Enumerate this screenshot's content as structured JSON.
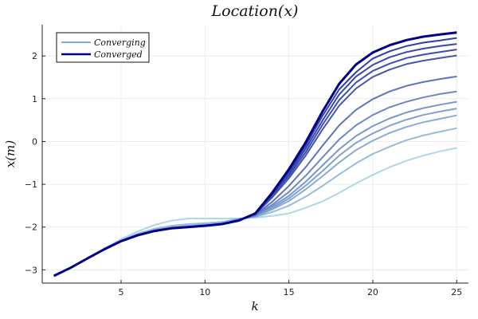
{
  "chart_data": {
    "type": "line",
    "title": "Location(x)",
    "xlabel": "k",
    "ylabel": "x(m)",
    "xlim": [
      0.3,
      25.7
    ],
    "ylim": [
      -3.31,
      2.73
    ],
    "xticks": [
      5,
      10,
      15,
      20,
      25
    ],
    "yticks": [
      -3,
      -2,
      -1,
      0,
      1,
      2
    ],
    "ytick_labels": [
      "−3",
      "−2",
      "−1",
      "0",
      "1",
      "2"
    ],
    "grid": true,
    "legend": {
      "placement": "top-left",
      "entries": [
        {
          "label": "Converging",
          "color": "#86a9de"
        },
        {
          "label": "Converged",
          "color": "#00008b"
        }
      ]
    },
    "colors": {
      "start": "#add8e6",
      "end": "#00008b",
      "converged": "#00008b"
    },
    "x": [
      1,
      2,
      3,
      4,
      5,
      6,
      7,
      8,
      9,
      10,
      11,
      12,
      13,
      14,
      15,
      16,
      17,
      18,
      19,
      20,
      21,
      22,
      23,
      24,
      25
    ],
    "series": [
      {
        "name": "Converging",
        "level": 0.0,
        "values": [
          -3.14,
          -2.95,
          -2.73,
          -2.5,
          -2.28,
          -2.1,
          -1.95,
          -1.85,
          -1.8,
          -1.8,
          -1.8,
          -1.8,
          -1.78,
          -1.74,
          -1.68,
          -1.55,
          -1.4,
          -1.2,
          -0.98,
          -0.78,
          -0.6,
          -0.45,
          -0.33,
          -0.23,
          -0.15
        ]
      },
      {
        "name": "Converging",
        "level": 0.17,
        "values": [
          -3.14,
          -2.95,
          -2.73,
          -2.52,
          -2.31,
          -2.15,
          -2.04,
          -1.97,
          -1.93,
          -1.91,
          -1.88,
          -1.81,
          -1.76,
          -1.65,
          -1.5,
          -1.29,
          -1.04,
          -0.77,
          -0.51,
          -0.29,
          -0.12,
          0.03,
          0.14,
          0.23,
          0.31
        ]
      },
      {
        "name": "Converging",
        "level": 0.28,
        "values": [
          -3.14,
          -2.95,
          -2.73,
          -2.52,
          -2.32,
          -2.17,
          -2.06,
          -2.0,
          -1.97,
          -1.94,
          -1.9,
          -1.81,
          -1.75,
          -1.59,
          -1.39,
          -1.12,
          -0.81,
          -0.49,
          -0.2,
          0.02,
          0.2,
          0.34,
          0.45,
          0.53,
          0.61
        ]
      },
      {
        "name": "Converging",
        "level": 0.34,
        "values": [
          -3.14,
          -2.95,
          -2.73,
          -2.52,
          -2.33,
          -2.19,
          -2.09,
          -2.03,
          -2.0,
          -1.97,
          -1.93,
          -1.82,
          -1.75,
          -1.56,
          -1.33,
          -1.03,
          -0.69,
          -0.33,
          -0.03,
          0.19,
          0.37,
          0.51,
          0.62,
          0.7,
          0.77
        ]
      },
      {
        "name": "Converging",
        "level": 0.4,
        "values": [
          -3.14,
          -2.95,
          -2.73,
          -2.52,
          -2.33,
          -2.19,
          -2.09,
          -2.03,
          -2.0,
          -1.97,
          -1.93,
          -1.82,
          -1.74,
          -1.52,
          -1.27,
          -0.94,
          -0.56,
          -0.18,
          0.13,
          0.36,
          0.54,
          0.68,
          0.78,
          0.86,
          0.93
        ]
      },
      {
        "name": "Converging",
        "level": 0.49,
        "values": [
          -3.14,
          -2.95,
          -2.73,
          -2.52,
          -2.33,
          -2.19,
          -2.09,
          -2.03,
          -2.0,
          -1.97,
          -1.93,
          -1.82,
          -1.73,
          -1.48,
          -1.18,
          -0.8,
          -0.37,
          0.05,
          0.38,
          0.62,
          0.8,
          0.93,
          1.03,
          1.11,
          1.17
        ]
      },
      {
        "name": "Converging",
        "level": 0.62,
        "values": [
          -3.14,
          -2.95,
          -2.73,
          -2.52,
          -2.33,
          -2.19,
          -2.09,
          -2.03,
          -2.0,
          -1.97,
          -1.93,
          -1.83,
          -1.72,
          -1.41,
          -1.04,
          -0.6,
          -0.1,
          0.38,
          0.74,
          0.99,
          1.17,
          1.3,
          1.39,
          1.46,
          1.52
        ]
      },
      {
        "name": "Converging",
        "level": 0.8,
        "values": [
          -3.14,
          -2.95,
          -2.73,
          -2.52,
          -2.33,
          -2.19,
          -2.09,
          -2.03,
          -2.0,
          -1.97,
          -1.93,
          -1.84,
          -1.7,
          -1.31,
          -0.86,
          -0.33,
          0.28,
          0.84,
          1.24,
          1.51,
          1.68,
          1.81,
          1.89,
          1.95,
          2.01
        ]
      },
      {
        "name": "Converging",
        "level": 0.85,
        "values": [
          -3.14,
          -2.95,
          -2.73,
          -2.52,
          -2.33,
          -2.19,
          -2.09,
          -2.03,
          -2.0,
          -1.97,
          -1.93,
          -1.84,
          -1.69,
          -1.28,
          -0.8,
          -0.25,
          0.39,
          0.97,
          1.38,
          1.65,
          1.82,
          1.95,
          2.03,
          2.09,
          2.15
        ]
      },
      {
        "name": "Converging",
        "level": 0.9,
        "values": [
          -3.14,
          -2.95,
          -2.73,
          -2.52,
          -2.33,
          -2.19,
          -2.09,
          -2.03,
          -2.0,
          -1.97,
          -1.93,
          -1.85,
          -1.69,
          -1.25,
          -0.75,
          -0.17,
          0.49,
          1.1,
          1.52,
          1.79,
          1.97,
          2.09,
          2.17,
          2.23,
          2.28
        ]
      },
      {
        "name": "Converging",
        "level": 0.95,
        "values": [
          -3.14,
          -2.95,
          -2.73,
          -2.52,
          -2.33,
          -2.19,
          -2.09,
          -2.03,
          -2.0,
          -1.97,
          -1.93,
          -1.85,
          -1.68,
          -1.23,
          -0.7,
          -0.1,
          0.6,
          1.22,
          1.62,
          1.94,
          2.11,
          2.23,
          2.31,
          2.36,
          2.42
        ]
      },
      {
        "name": "Converged",
        "level": 1.0,
        "values": [
          -3.14,
          -2.95,
          -2.73,
          -2.52,
          -2.33,
          -2.19,
          -2.09,
          -2.03,
          -2.0,
          -1.97,
          -1.93,
          -1.85,
          -1.68,
          -1.2,
          -0.65,
          -0.02,
          0.7,
          1.35,
          1.8,
          2.08,
          2.25,
          2.37,
          2.45,
          2.5,
          2.55
        ]
      }
    ]
  }
}
